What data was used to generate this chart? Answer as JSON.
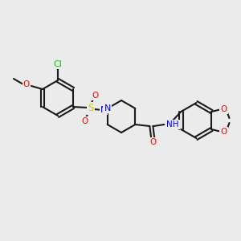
{
  "bg_color": "#ebebeb",
  "bond_color": "#1a1a1a",
  "bond_width": 1.5,
  "atom_colors": {
    "Cl": "#00cc00",
    "O": "#ff0000",
    "N": "#0000ff",
    "S": "#cccc00",
    "H": "#7fbfbf",
    "C": "#1a1a1a"
  },
  "font_size": 7.5,
  "fig_size": [
    3.0,
    3.0
  ],
  "dpi": 100
}
